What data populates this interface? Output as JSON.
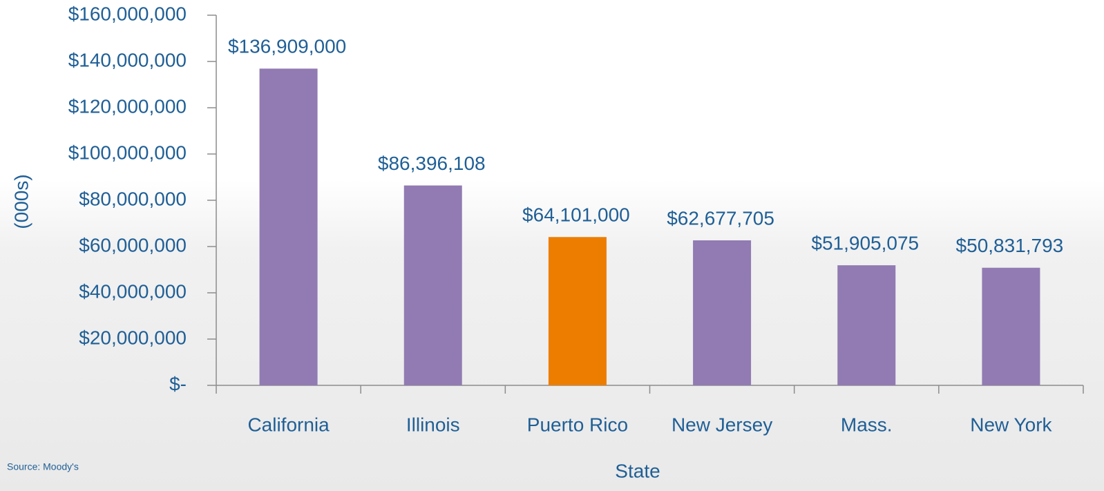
{
  "chart_data": {
    "type": "bar",
    "categories": [
      "California",
      "Illinois",
      "Puerto Rico",
      "New Jersey",
      "Mass.",
      "New York"
    ],
    "values": [
      136909000,
      86396108,
      64101000,
      62677705,
      51905075,
      50831793
    ],
    "value_labels": [
      "$136,909,000",
      "$86,396,108",
      "$64,101,000",
      "$62,677,705",
      "$51,905,075",
      "$50,831,793"
    ],
    "colors": [
      "#917bb2",
      "#917bb2",
      "#ed7d00",
      "#917bb2",
      "#917bb2",
      "#917bb2"
    ],
    "ylim": [
      0,
      160000000
    ],
    "yticks": [
      {
        "value": 0,
        "label": "$-"
      },
      {
        "value": 20000000,
        "label": "$20,000,000"
      },
      {
        "value": 40000000,
        "label": "$40,000,000"
      },
      {
        "value": 60000000,
        "label": "$60,000,000"
      },
      {
        "value": 80000000,
        "label": "$80,000,000"
      },
      {
        "value": 100000000,
        "label": "$100,000,000"
      },
      {
        "value": 120000000,
        "label": "$120,000,000"
      },
      {
        "value": 140000000,
        "label": "$140,000,000"
      },
      {
        "value": 160000000,
        "label": "$160,000,000"
      }
    ],
    "xlabel": "State",
    "ylabel": "(000s)",
    "source": "Source: Moody's"
  }
}
